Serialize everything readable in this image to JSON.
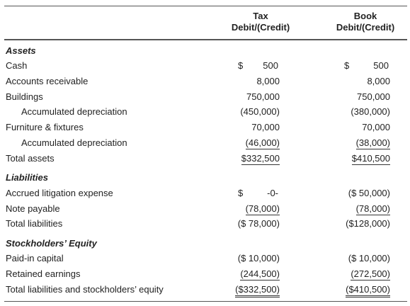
{
  "header": {
    "tax": [
      "Tax",
      "Debit/(Credit)"
    ],
    "book": [
      "Book",
      "Debit/(Credit)"
    ]
  },
  "rows": [
    {
      "label": "Assets",
      "section": true
    },
    {
      "label": "Cash",
      "tax": [
        "$",
        "500"
      ],
      "book": [
        "$",
        "500"
      ]
    },
    {
      "label": "Accounts receivable",
      "tax": [
        "8,000"
      ],
      "book": [
        "8,000"
      ]
    },
    {
      "label": "Buildings",
      "tax": [
        "750,000"
      ],
      "book": [
        "750,000"
      ]
    },
    {
      "label": "Accumulated depreciation",
      "indent": true,
      "tax": [
        "(450,000)"
      ],
      "book": [
        "(380,000)"
      ]
    },
    {
      "label": "Furniture & fixtures",
      "tax": [
        "70,000"
      ],
      "book": [
        "70,000"
      ]
    },
    {
      "label": "Accumulated depreciation",
      "indent": true,
      "tax": [
        "(46,000)"
      ],
      "book": [
        "(38,000)"
      ],
      "rule": "single"
    },
    {
      "label": "Total assets",
      "tax": [
        "$332,500"
      ],
      "book": [
        "$410,500"
      ],
      "rule": "single"
    },
    {
      "label": "Liabilities",
      "section": true
    },
    {
      "label": "Accrued litigation expense",
      "tax": [
        "$",
        "-0-"
      ],
      "book": [
        "($ 50,000)"
      ]
    },
    {
      "label": "Note payable",
      "tax": [
        "(78,000)"
      ],
      "book": [
        "(78,000)"
      ],
      "rule": "single"
    },
    {
      "label": "Total liabilities",
      "tax": [
        "($ 78,000)"
      ],
      "book": [
        "($128,000)"
      ]
    },
    {
      "label": "Stockholders’ Equity",
      "section": true
    },
    {
      "label": "Paid-in capital",
      "tax": [
        "($ 10,000)"
      ],
      "book": [
        "($ 10,000)"
      ]
    },
    {
      "label": "Retained earnings",
      "tax": [
        "(244,500)"
      ],
      "book": [
        "(272,500)"
      ],
      "rule": "single"
    },
    {
      "label": "Total liabilities and stockholders’ equity",
      "tax": [
        "($332,500)"
      ],
      "book": [
        "($410,500)"
      ],
      "rule": "double"
    }
  ]
}
